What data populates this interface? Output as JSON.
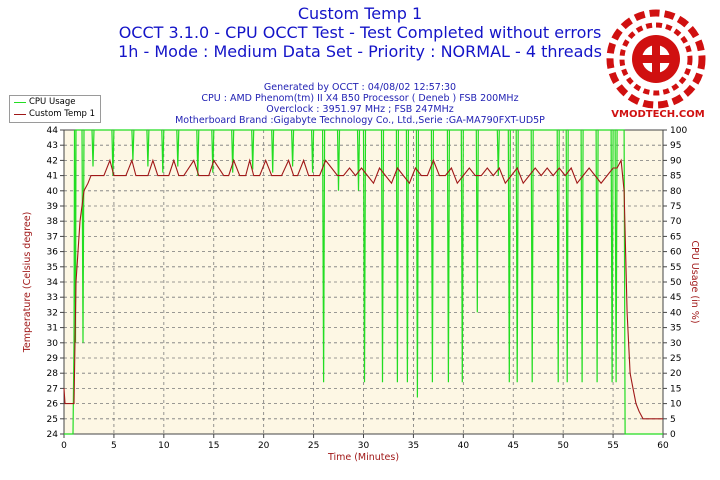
{
  "title": {
    "line1": "Custom Temp 1",
    "line2": "OCCT 3.1.0 - CPU OCCT Test - Test Completed without errors",
    "line3": "1h - Mode : Medium Data Set - Priority : NORMAL - 4 threads"
  },
  "info": {
    "generated": "Generated by OCCT : 04/08/02 12:57:30",
    "cpu": "CPU : AMD Phenom(tm) II X4 B50 Processor ( Deneb ) FSB 200MHz",
    "overclock": "Overclock : 3951.97 MHz ; FSB 247MHz",
    "motherboard": "Motherboard Brand :Gigabyte Technology Co., Ltd.,Serie :GA-MA790FXT-UD5P"
  },
  "logo": {
    "text": "VMODTECH.COM"
  },
  "colors": {
    "cpu_usage": "#22dd22",
    "custom_temp": "#a01818",
    "plot_bg": "#fdf7e4",
    "grid": "#7a7a7a",
    "title": "#1414c8"
  },
  "chart_data": {
    "type": "line",
    "xlabel": "Time (Minutes)",
    "ylabel_left": "Temperature (Celsius degree)",
    "ylabel_right": "CPU Usage (in %)",
    "xlim": [
      0,
      60
    ],
    "ylim_left": [
      24,
      44
    ],
    "ylim_right": [
      0,
      100
    ],
    "x_ticks": [
      0,
      5,
      10,
      15,
      20,
      25,
      30,
      35,
      40,
      45,
      50,
      55,
      60
    ],
    "y_left_ticks": [
      24,
      25,
      26,
      27,
      28,
      29,
      30,
      31,
      32,
      33,
      34,
      35,
      36,
      37,
      38,
      39,
      40,
      41,
      42,
      43,
      44
    ],
    "y_right_ticks": [
      0,
      5,
      10,
      15,
      20,
      25,
      30,
      35,
      40,
      45,
      50,
      55,
      60,
      65,
      70,
      75,
      80,
      85,
      90,
      95,
      100
    ],
    "grid": true,
    "legend_position": "top-left",
    "series": [
      {
        "name": "CPU Usage",
        "axis": "right",
        "x": [
          0,
          0.9,
          1.0,
          1.05,
          1.15,
          1.2,
          1.3,
          1.8,
          1.9,
          2.0,
          2.8,
          2.9,
          3.0,
          4.8,
          4.9,
          5.0,
          6.8,
          6.9,
          7.0,
          8.3,
          8.4,
          8.5,
          9.8,
          9.9,
          10.0,
          11.3,
          11.4,
          11.5,
          13.3,
          13.4,
          13.5,
          14.8,
          14.9,
          15.0,
          16.8,
          16.9,
          17.0,
          18.8,
          18.9,
          19.0,
          20.8,
          20.9,
          21.0,
          22.8,
          22.9,
          23.0,
          24.8,
          24.9,
          25.0,
          25.9,
          26.0,
          26.1,
          27.4,
          27.5,
          27.6,
          29.4,
          29.5,
          29.6,
          30.0,
          30.1,
          30.2,
          31.8,
          31.9,
          32.0,
          33.3,
          33.4,
          33.5,
          34.3,
          34.4,
          34.5,
          35.3,
          35.4,
          35.5,
          36.8,
          36.9,
          37.0,
          38.4,
          38.5,
          38.6,
          39.8,
          39.9,
          40.0,
          41.3,
          41.4,
          41.5,
          43.4,
          43.5,
          43.6,
          44.5,
          44.6,
          44.7,
          45.3,
          45.4,
          45.5,
          46.8,
          46.9,
          47.0,
          49.4,
          49.5,
          49.6,
          50.3,
          50.4,
          50.5,
          51.8,
          51.9,
          52.0,
          53.3,
          53.4,
          53.5,
          54.8,
          54.9,
          55.0,
          55.2,
          55.3,
          55.4,
          56.1,
          56.2,
          56.3,
          60
        ],
        "values": [
          0,
          0,
          30,
          100,
          30,
          100,
          100,
          100,
          30,
          100,
          100,
          88,
          100,
          100,
          85,
          100,
          100,
          90,
          100,
          100,
          88,
          100,
          100,
          86,
          100,
          100,
          88,
          100,
          100,
          85,
          100,
          100,
          86,
          100,
          100,
          86,
          100,
          100,
          87,
          100,
          100,
          86,
          100,
          100,
          88,
          100,
          100,
          86,
          100,
          100,
          17,
          100,
          100,
          80,
          100,
          100,
          80,
          100,
          100,
          17,
          100,
          100,
          17,
          100,
          100,
          17,
          100,
          100,
          17,
          100,
          100,
          12,
          100,
          100,
          17,
          100,
          100,
          17,
          100,
          100,
          17,
          100,
          100,
          40,
          100,
          100,
          85,
          100,
          100,
          17,
          100,
          100,
          17,
          100,
          100,
          17,
          100,
          100,
          17,
          100,
          100,
          17,
          100,
          100,
          17,
          100,
          100,
          17,
          100,
          100,
          17,
          100,
          100,
          17,
          100,
          100,
          0,
          0,
          0
        ]
      },
      {
        "name": "Custom Temp 1",
        "axis": "left",
        "x": [
          0,
          0.1,
          0.3,
          0.9,
          1.0,
          1.2,
          1.6,
          2.0,
          2.4,
          2.7,
          3.0,
          3.5,
          4.0,
          4.6,
          5.0,
          5.5,
          6.2,
          6.8,
          7.2,
          7.8,
          8.4,
          8.9,
          9.4,
          10.0,
          10.5,
          11.0,
          11.5,
          12.0,
          13.0,
          13.5,
          14.0,
          14.5,
          15.0,
          16.0,
          16.5,
          17.0,
          17.6,
          18.2,
          18.6,
          19.0,
          19.6,
          20.2,
          20.8,
          21.2,
          21.8,
          22.5,
          23.0,
          23.4,
          24.0,
          24.5,
          25.0,
          25.6,
          26.2,
          26.8,
          27.4,
          28.0,
          28.6,
          29.2,
          29.8,
          30.4,
          31.0,
          31.6,
          32.2,
          32.8,
          33.4,
          34.0,
          34.6,
          35.2,
          35.8,
          36.4,
          37.0,
          37.6,
          38.2,
          38.8,
          39.4,
          40.0,
          40.6,
          41.2,
          41.8,
          42.4,
          43.0,
          43.6,
          44.2,
          44.8,
          45.4,
          46.0,
          46.6,
          47.2,
          47.8,
          48.4,
          49.0,
          49.6,
          50.2,
          50.8,
          51.4,
          52.0,
          52.6,
          53.2,
          53.8,
          54.4,
          55.0,
          55.4,
          55.8,
          56.1,
          56.4,
          56.7,
          57.0,
          57.3,
          57.6,
          58.0,
          59.0,
          60
        ],
        "values": [
          27,
          26,
          26,
          26,
          26,
          34,
          38,
          40,
          40.5,
          41,
          41,
          41,
          41,
          42,
          41,
          41,
          41,
          42,
          41,
          41,
          41,
          42,
          41,
          41,
          41,
          42,
          41,
          41,
          42,
          41,
          41,
          41,
          42,
          41,
          41,
          42,
          41,
          41,
          42,
          41,
          41,
          42,
          41,
          41,
          41,
          42,
          41,
          41,
          42,
          41,
          41,
          41,
          42,
          41.5,
          41,
          41,
          41.5,
          41,
          41.5,
          41,
          40.5,
          41.5,
          41,
          40.5,
          41.5,
          41,
          40.5,
          41.5,
          41,
          41,
          42,
          41,
          41,
          41.5,
          40.5,
          41,
          41.5,
          41,
          41,
          41.5,
          41,
          41.5,
          40.5,
          41,
          41.5,
          40.5,
          41,
          41.5,
          41,
          41.5,
          41,
          41.5,
          41,
          41.5,
          40.5,
          41,
          41.5,
          41,
          40.5,
          41,
          41.5,
          41.5,
          42,
          40,
          32,
          28,
          27,
          26,
          25.5,
          25,
          25,
          25
        ]
      }
    ]
  }
}
